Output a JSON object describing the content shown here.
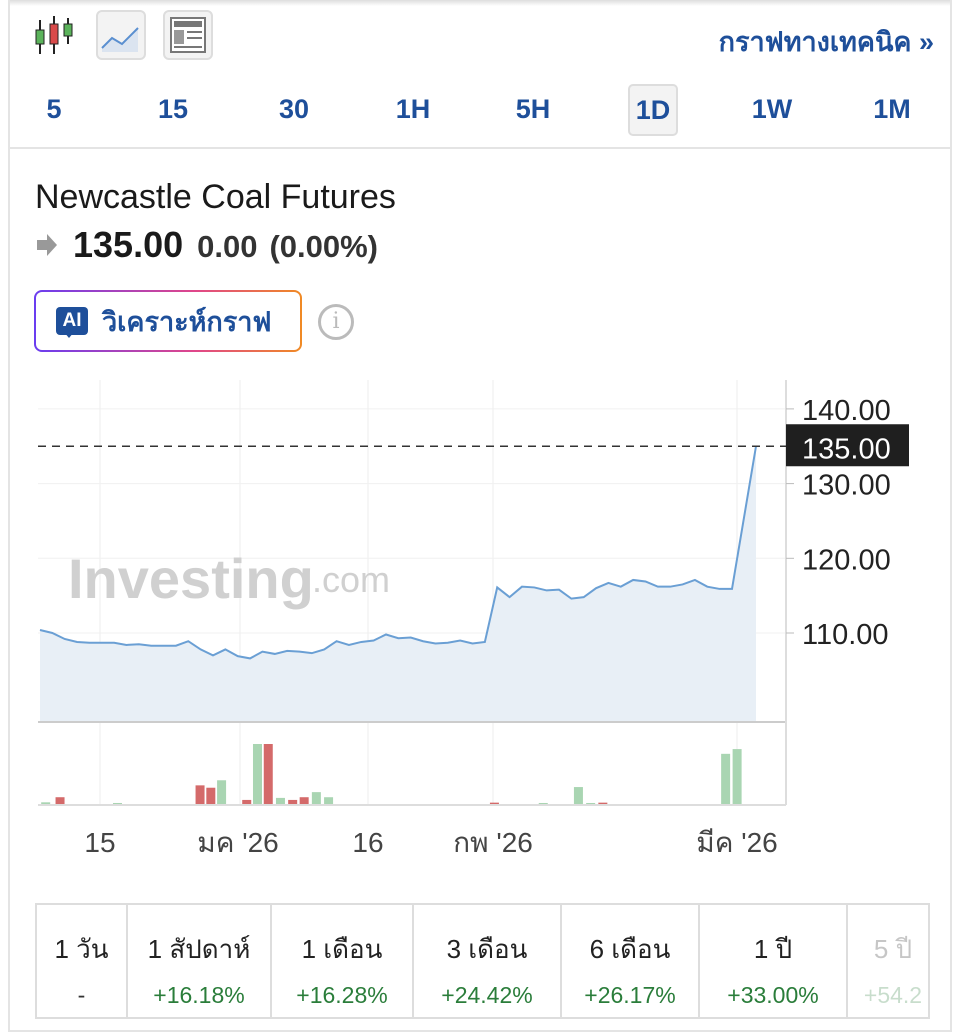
{
  "toolbar": {
    "chart_types": [
      "candlestick-icon",
      "area-chart-icon",
      "table-view-icon"
    ],
    "technical_link": "กราฟทางเทคนิค »"
  },
  "timeframes": [
    "5",
    "15",
    "30",
    "1H",
    "5H",
    "1D",
    "1W",
    "1M"
  ],
  "selected_timeframe": "1D",
  "instrument": {
    "name": "Newcastle Coal Futures",
    "price": "135.00",
    "change": "0.00",
    "change_pct": "(0.00%)",
    "direction_icon": "arrow-right-icon"
  },
  "ai_button": {
    "badge": "AI",
    "label": "วิเคราะห์กราฟ"
  },
  "colors": {
    "accent": "#1e4f9a",
    "line": "#6a9fd4",
    "area": "#e8eff6",
    "up": "#a9d5b2",
    "down": "#d46a6a",
    "positive": "#2a7d3a"
  },
  "chart_data": {
    "type": "area",
    "watermark": "Investing.com",
    "y_ticks": [
      "140.00",
      "130.00",
      "120.00",
      "110.00"
    ],
    "ylim": [
      98,
      143
    ],
    "last_price_label": "135.00",
    "last_price": 135,
    "x_tick_labels": [
      "15",
      "มค '26",
      "16",
      "กพ '26",
      "มีค '26"
    ],
    "grid": true,
    "values": [
      110.4,
      110.0,
      109.2,
      108.8,
      108.7,
      108.7,
      108.7,
      108.4,
      108.5,
      108.3,
      108.3,
      108.3,
      108.9,
      107.8,
      107.0,
      107.8,
      106.9,
      106.6,
      107.5,
      107.2,
      107.6,
      107.5,
      107.3,
      107.8,
      108.9,
      108.4,
      108.8,
      109.0,
      109.8,
      109.3,
      109.4,
      108.9,
      108.6,
      108.7,
      109.0,
      108.6,
      108.8,
      116.1,
      114.8,
      116.2,
      116.1,
      115.7,
      115.8,
      114.6,
      114.8,
      116.0,
      116.7,
      116.2,
      117.1,
      116.9,
      116.2,
      116.2,
      116.5,
      117.1,
      116.2,
      115.9,
      115.9,
      135.0
    ],
    "volume": [
      {
        "pos": 0.01,
        "v": 5,
        "dir": "up"
      },
      {
        "pos": 0.03,
        "v": 20,
        "dir": "down"
      },
      {
        "pos": 0.11,
        "v": 3,
        "dir": "up"
      },
      {
        "pos": 0.225,
        "v": 55,
        "dir": "down"
      },
      {
        "pos": 0.24,
        "v": 48,
        "dir": "down"
      },
      {
        "pos": 0.255,
        "v": 70,
        "dir": "up"
      },
      {
        "pos": 0.29,
        "v": 12,
        "dir": "down"
      },
      {
        "pos": 0.305,
        "v": 177,
        "dir": "up"
      },
      {
        "pos": 0.32,
        "v": 177,
        "dir": "down"
      },
      {
        "pos": 0.337,
        "v": 18,
        "dir": "up"
      },
      {
        "pos": 0.354,
        "v": 12,
        "dir": "down"
      },
      {
        "pos": 0.37,
        "v": 20,
        "dir": "down"
      },
      {
        "pos": 0.387,
        "v": 35,
        "dir": "up"
      },
      {
        "pos": 0.404,
        "v": 20,
        "dir": "up"
      },
      {
        "pos": 0.635,
        "v": 4,
        "dir": "down"
      },
      {
        "pos": 0.703,
        "v": 3,
        "dir": "up"
      },
      {
        "pos": 0.752,
        "v": 50,
        "dir": "up"
      },
      {
        "pos": 0.769,
        "v": 3,
        "dir": "up"
      },
      {
        "pos": 0.786,
        "v": 4,
        "dir": "down"
      },
      {
        "pos": 0.957,
        "v": 148,
        "dir": "up"
      },
      {
        "pos": 0.973,
        "v": 162,
        "dir": "up"
      }
    ]
  },
  "performance": [
    {
      "period": "1 วัน",
      "value": "-"
    },
    {
      "period": "1 สัปดาห์",
      "value": "+16.18%"
    },
    {
      "period": "1 เดือน",
      "value": "+16.28%"
    },
    {
      "period": "3 เดือน",
      "value": "+24.42%"
    },
    {
      "period": "6 เดือน",
      "value": "+26.17%"
    },
    {
      "period": "1 ปี",
      "value": "+33.00%"
    },
    {
      "period": "5 ปี",
      "value": "+54.2"
    }
  ]
}
